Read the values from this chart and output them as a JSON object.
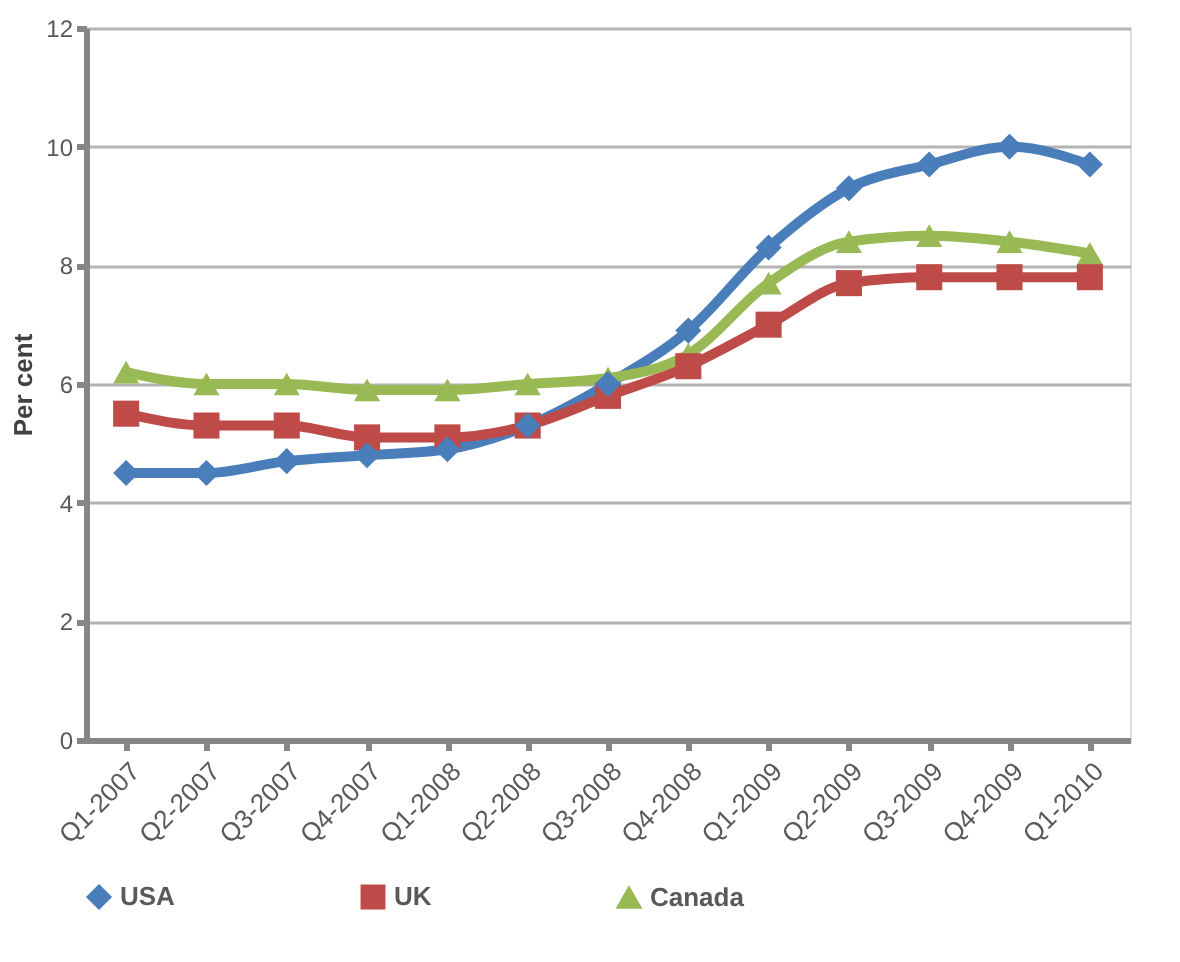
{
  "chart_data": {
    "type": "line",
    "ylabel": "Per cent",
    "categories": [
      "Q1-2007",
      "Q2-2007",
      "Q3-2007",
      "Q4-2007",
      "Q1-2008",
      "Q2-2008",
      "Q3-2008",
      "Q4-2008",
      "Q1-2009",
      "Q2-2009",
      "Q3-2009",
      "Q4-2009",
      "Q1-2010"
    ],
    "series": [
      {
        "name": "USA",
        "color": "#4a7ebb",
        "marker": "diamond",
        "values": [
          4.5,
          4.5,
          4.7,
          4.8,
          4.9,
          5.3,
          6.0,
          6.9,
          8.3,
          9.3,
          9.7,
          10.0,
          9.7
        ]
      },
      {
        "name": "UK",
        "color": "#be4b48",
        "marker": "square",
        "values": [
          5.5,
          5.3,
          5.3,
          5.1,
          5.1,
          5.3,
          5.8,
          6.3,
          7.0,
          7.7,
          7.8,
          7.8,
          7.8
        ]
      },
      {
        "name": "Canada",
        "color": "#98b954",
        "marker": "triangle",
        "values": [
          6.2,
          6.0,
          6.0,
          5.9,
          5.9,
          6.0,
          6.1,
          6.5,
          7.7,
          8.4,
          8.5,
          8.4,
          8.2
        ]
      }
    ],
    "ylim": [
      0,
      12
    ],
    "yticks": [
      0,
      2,
      4,
      6,
      8,
      10,
      12
    ],
    "grid": "y",
    "legend": "bottom",
    "line_style": "solid"
  }
}
